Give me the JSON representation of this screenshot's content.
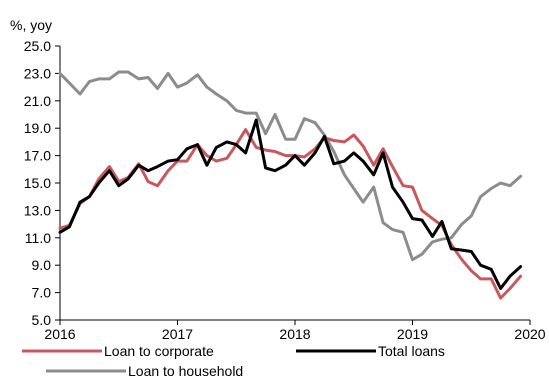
{
  "chart_data": {
    "type": "line",
    "unit_label": "%, yoy",
    "x_ticks": [
      "2016",
      "2017",
      "2018",
      "2019",
      "2020"
    ],
    "xlim": [
      2016,
      2020
    ],
    "ylim": [
      5,
      25
    ],
    "y_ticks": [
      "25.0",
      "23.0",
      "21.0",
      "19.0",
      "17.0",
      "15.0",
      "13.0",
      "11.0",
      "9.0",
      "7.0",
      "5.0"
    ],
    "grid": false,
    "legend_position": "bottom",
    "series": [
      {
        "name": "Loan to corporate",
        "color": "#c9585c",
        "x": [
          2016.0,
          2016.08,
          2016.17,
          2016.25,
          2016.33,
          2016.42,
          2016.5,
          2016.58,
          2016.67,
          2016.75,
          2016.83,
          2016.92,
          2017.0,
          2017.08,
          2017.17,
          2017.25,
          2017.33,
          2017.42,
          2017.5,
          2017.58,
          2017.67,
          2017.75,
          2017.83,
          2017.92,
          2018.0,
          2018.08,
          2018.17,
          2018.25,
          2018.33,
          2018.42,
          2018.5,
          2018.58,
          2018.67,
          2018.75,
          2018.83,
          2018.92,
          2019.0,
          2019.08,
          2019.17,
          2019.25,
          2019.33,
          2019.42,
          2019.5,
          2019.58,
          2019.67,
          2019.75,
          2019.83,
          2019.92
        ],
        "values": [
          11.7,
          11.9,
          13.5,
          14.0,
          15.3,
          16.2,
          15.1,
          15.4,
          16.4,
          15.1,
          14.8,
          15.9,
          16.6,
          16.6,
          17.8,
          17.0,
          16.6,
          16.8,
          17.8,
          18.9,
          17.6,
          17.4,
          17.3,
          17.0,
          17.0,
          16.9,
          17.5,
          18.3,
          18.1,
          18.0,
          18.5,
          17.7,
          16.3,
          17.5,
          16.2,
          14.8,
          14.7,
          13.0,
          12.4,
          11.9,
          10.5,
          9.4,
          8.6,
          8.0,
          8.0,
          6.6,
          7.3,
          8.2
        ]
      },
      {
        "name": "Total loans",
        "color": "#000000",
        "x": [
          2016.0,
          2016.08,
          2016.17,
          2016.25,
          2016.33,
          2016.42,
          2016.5,
          2016.58,
          2016.67,
          2016.75,
          2016.83,
          2016.92,
          2017.0,
          2017.08,
          2017.17,
          2017.25,
          2017.33,
          2017.42,
          2017.5,
          2017.58,
          2017.67,
          2017.75,
          2017.83,
          2017.92,
          2018.0,
          2018.08,
          2018.17,
          2018.25,
          2018.33,
          2018.42,
          2018.5,
          2018.58,
          2018.67,
          2018.75,
          2018.83,
          2018.92,
          2019.0,
          2019.08,
          2019.17,
          2019.25,
          2019.33,
          2019.42,
          2019.5,
          2019.58,
          2019.67,
          2019.75,
          2019.83,
          2019.92
        ],
        "values": [
          11.4,
          11.8,
          13.6,
          14.0,
          15.0,
          15.9,
          14.8,
          15.3,
          16.3,
          15.9,
          16.2,
          16.6,
          16.7,
          17.5,
          17.8,
          16.3,
          17.6,
          18.0,
          17.8,
          17.2,
          19.6,
          16.1,
          15.9,
          16.3,
          17.0,
          16.3,
          17.2,
          18.4,
          16.4,
          16.6,
          17.2,
          16.6,
          15.6,
          17.2,
          14.7,
          13.6,
          12.4,
          12.3,
          11.1,
          12.2,
          10.2,
          10.1,
          10.0,
          9.0,
          8.7,
          7.3,
          8.2,
          8.9
        ]
      },
      {
        "name": "Loan to household",
        "color": "#8c8c8c",
        "x": [
          2016.0,
          2016.08,
          2016.17,
          2016.25,
          2016.33,
          2016.42,
          2016.5,
          2016.58,
          2016.67,
          2016.75,
          2016.83,
          2016.92,
          2017.0,
          2017.08,
          2017.17,
          2017.25,
          2017.33,
          2017.42,
          2017.5,
          2017.58,
          2017.67,
          2017.75,
          2017.83,
          2017.92,
          2018.0,
          2018.08,
          2018.17,
          2018.25,
          2018.33,
          2018.42,
          2018.5,
          2018.58,
          2018.67,
          2018.75,
          2018.83,
          2018.92,
          2019.0,
          2019.08,
          2019.17,
          2019.25,
          2019.33,
          2019.42,
          2019.5,
          2019.58,
          2019.67,
          2019.75,
          2019.83,
          2019.92
        ],
        "values": [
          23.0,
          22.3,
          21.5,
          22.4,
          22.6,
          22.6,
          23.1,
          23.1,
          22.6,
          22.7,
          21.9,
          23.0,
          22.0,
          22.3,
          22.9,
          22.0,
          21.5,
          21.0,
          20.3,
          20.1,
          20.1,
          18.6,
          20.0,
          18.2,
          18.2,
          19.7,
          19.4,
          18.5,
          17.3,
          15.6,
          14.6,
          13.6,
          14.7,
          12.1,
          11.6,
          11.4,
          9.4,
          9.8,
          10.7,
          10.9,
          11.0,
          12.0,
          12.6,
          14.0,
          14.6,
          15.0,
          14.8,
          15.5
        ]
      }
    ]
  }
}
